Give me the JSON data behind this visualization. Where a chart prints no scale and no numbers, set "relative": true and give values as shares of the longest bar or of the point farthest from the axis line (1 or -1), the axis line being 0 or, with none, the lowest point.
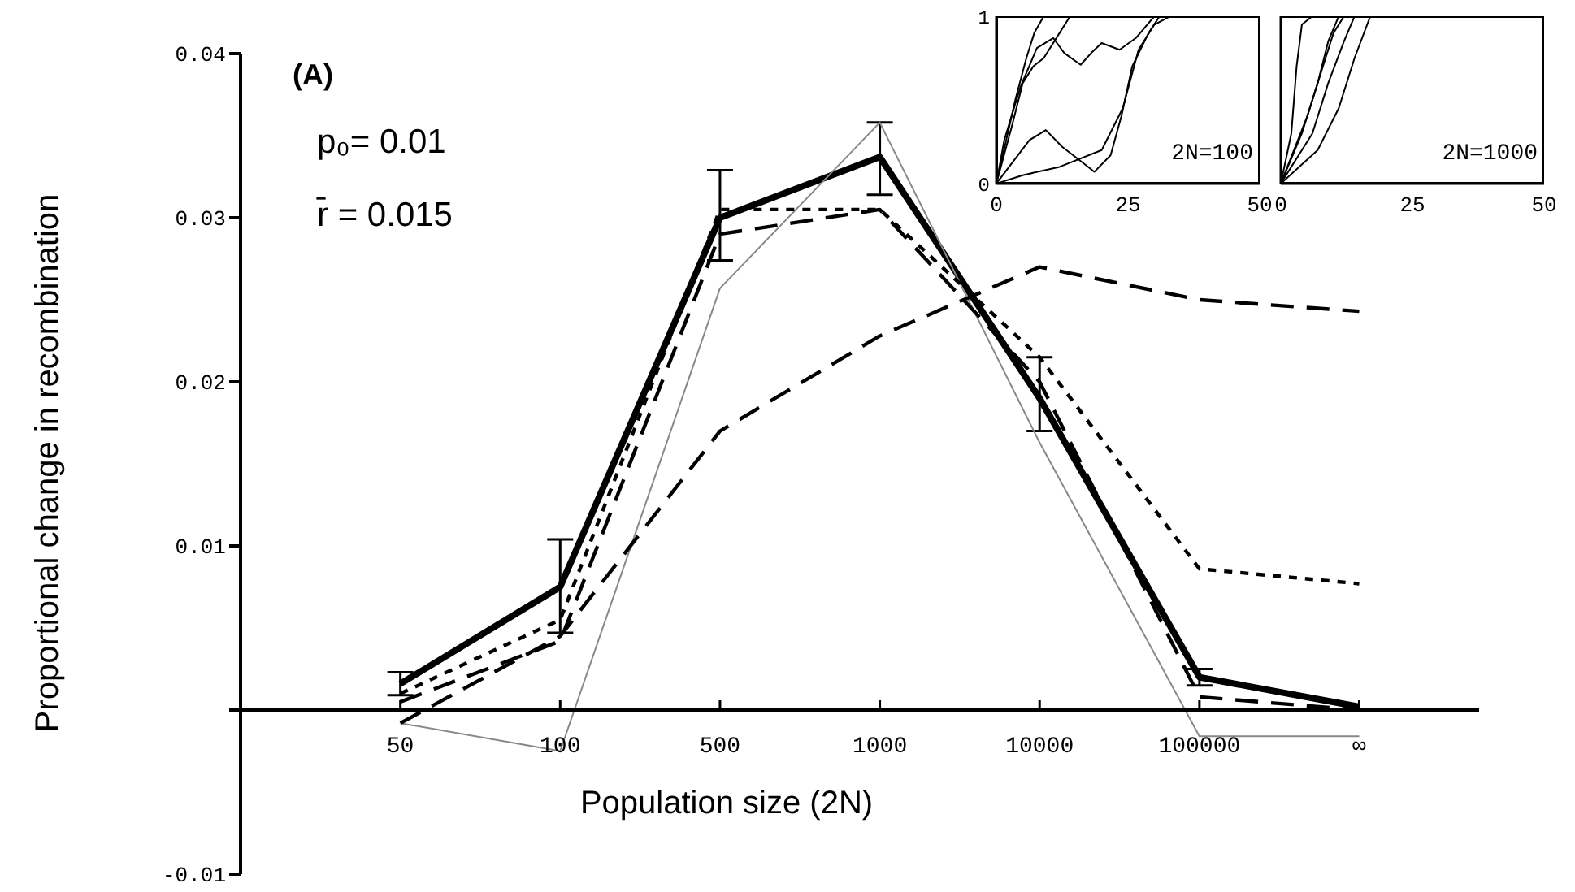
{
  "chart_data": [
    {
      "type": "line",
      "categories": [
        "50",
        "100",
        "500",
        "1000",
        "10000",
        "100000",
        "∞"
      ],
      "xlabel": "Population size (2N)",
      "ylabel": "Proportional change in recombination",
      "ylim": [
        -0.01,
        0.04
      ],
      "yticks": [
        -0.01,
        {
          "value": 0,
          "label": null
        },
        0.01,
        0.02,
        0.03,
        0.04
      ],
      "annotations": [
        "(A)",
        "p₀= 0.01",
        "r̄ = 0.015"
      ],
      "series": [
        {
          "color": "#000000",
          "line_style": "solid",
          "values": [
            0.0016,
            0.0075,
            0.03,
            0.0337,
            0.019,
            0.002,
            0.0002
          ],
          "errors": [
            [
              0.0009,
              0.0023
            ],
            [
              0.0047,
              0.0104
            ],
            [
              0.0274,
              0.0329
            ],
            [
              0.0314,
              0.0358
            ],
            [
              0.017,
              0.0215
            ],
            [
              0.0015,
              0.0025
            ],
            null
          ]
        },
        {
          "color": "#888888",
          "line_style": "solid",
          "values": [
            -0.0008,
            -0.0025,
            0.0257,
            0.0358,
            0.0163,
            -0.0016,
            -0.0016
          ]
        },
        {
          "color": "#000000",
          "line_style": "dotted",
          "values": [
            0.001,
            0.0055,
            0.0305,
            0.0305,
            0.0215,
            0.0086,
            0.0077
          ]
        },
        {
          "color": "#000000",
          "line_style": "dashed",
          "values": [
            -0.0008,
            0.0045,
            0.017,
            0.0228,
            0.027,
            0.025,
            0.0243
          ]
        },
        {
          "color": "#000000",
          "line_style": "dashed",
          "values": [
            0.0005,
            0.0042,
            0.029,
            0.0305,
            0.02,
            0.0008,
            0.0
          ]
        }
      ]
    },
    {
      "type": "line",
      "xlim": [
        0,
        50
      ],
      "xticks": [
        0,
        25,
        50
      ],
      "ylim": [
        0,
        1
      ],
      "yticks": [
        0,
        1
      ],
      "annotations": [
        "2N=100"
      ],
      "series": [
        {
          "color": "#000000",
          "x": [
            0,
            3.6,
            5.7,
            7.2,
            9
          ],
          "values": [
            0,
            0.5,
            0.75,
            0.9,
            1
          ]
        },
        {
          "color": "#000000",
          "x": [
            0,
            3,
            5,
            7,
            9,
            12,
            14
          ],
          "values": [
            0,
            0.35,
            0.6,
            0.7,
            0.75,
            0.9,
            1
          ]
        },
        {
          "color": "#000000",
          "x": [
            0,
            6.3,
            9.4,
            12.5,
            16.6,
            18.6,
            21.7,
            23.8,
            25.8,
            28.9,
            31
          ],
          "values": [
            0,
            0.26,
            0.32,
            0.22,
            0.12,
            0.07,
            0.17,
            0.41,
            0.7,
            0.9,
            1
          ]
        },
        {
          "color": "#000000",
          "x": [
            0,
            1.5,
            4.6,
            7.7,
            10.8,
            12.9,
            16,
            18,
            20,
            23.4,
            26.5,
            30
          ],
          "values": [
            0,
            0.26,
            0.58,
            0.81,
            0.87,
            0.78,
            0.71,
            0.78,
            0.84,
            0.8,
            0.87,
            1
          ]
        },
        {
          "color": "#000000",
          "x": [
            0,
            5,
            12,
            20,
            24,
            27,
            30,
            33
          ],
          "values": [
            0,
            0.05,
            0.1,
            0.2,
            0.45,
            0.8,
            0.95,
            1
          ]
        }
      ]
    },
    {
      "type": "line",
      "xlim": [
        0,
        50
      ],
      "xticks": [
        0,
        25,
        50
      ],
      "relative": true,
      "tick_labels": "x",
      "annotations": [
        "2N=1000"
      ],
      "series": [
        {
          "color": "#000000",
          "x": [
            0,
            2,
            3,
            4,
            6
          ],
          "values": [
            0,
            0.3,
            0.7,
            0.95,
            1
          ]
        },
        {
          "color": "#000000",
          "x": [
            0,
            4,
            7,
            9,
            11
          ],
          "values": [
            0,
            0.3,
            0.6,
            0.85,
            1
          ]
        },
        {
          "color": "#000000",
          "x": [
            0,
            6,
            9,
            12,
            14
          ],
          "values": [
            0,
            0.3,
            0.6,
            0.85,
            1
          ]
        },
        {
          "color": "#000000",
          "x": [
            0,
            7,
            11,
            14,
            17
          ],
          "values": [
            0,
            0.2,
            0.45,
            0.75,
            1
          ]
        },
        {
          "color": "#000000",
          "x": [
            0,
            5,
            8,
            10,
            12
          ],
          "values": [
            0,
            0.4,
            0.7,
            0.9,
            1
          ]
        }
      ]
    }
  ]
}
